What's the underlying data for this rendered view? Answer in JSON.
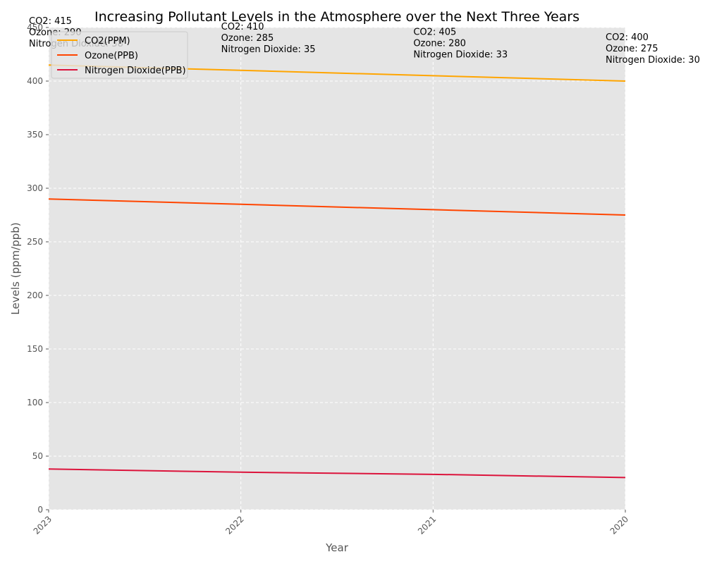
{
  "chart_data": {
    "type": "line",
    "title": "Increasing Pollutant Levels in the Atmosphere over the Next Three Years",
    "xlabel": "Year",
    "ylabel": "Levels (ppm/ppb)",
    "categories": [
      "2023",
      "2022",
      "2021",
      "2020"
    ],
    "ylim": [
      0,
      450
    ],
    "yticks": [
      0,
      50,
      100,
      150,
      200,
      250,
      300,
      350,
      400,
      450
    ],
    "grid": true,
    "legend_position": "upper-left",
    "series": [
      {
        "name": "CO2(PPM)",
        "color": "#FFA500",
        "values": [
          415,
          410,
          405,
          400
        ]
      },
      {
        "name": "Ozone(PPB)",
        "color": "#FF4500",
        "values": [
          290,
          285,
          280,
          275
        ]
      },
      {
        "name": "Nitrogen Dioxide(PPB)",
        "color": "#DC143C",
        "values": [
          38,
          35,
          33,
          30
        ]
      }
    ],
    "annotations": [
      {
        "lines": [
          "CO2: 415",
          "Ozone: 290",
          "Nitrogen Dioxide: 38"
        ]
      },
      {
        "lines": [
          "CO2: 410",
          "Ozone: 285",
          "Nitrogen Dioxide: 35"
        ]
      },
      {
        "lines": [
          "CO2: 405",
          "Ozone: 280",
          "Nitrogen Dioxide: 33"
        ]
      },
      {
        "lines": [
          "CO2: 400",
          "Ozone: 275",
          "Nitrogen Dioxide: 30"
        ]
      }
    ]
  }
}
